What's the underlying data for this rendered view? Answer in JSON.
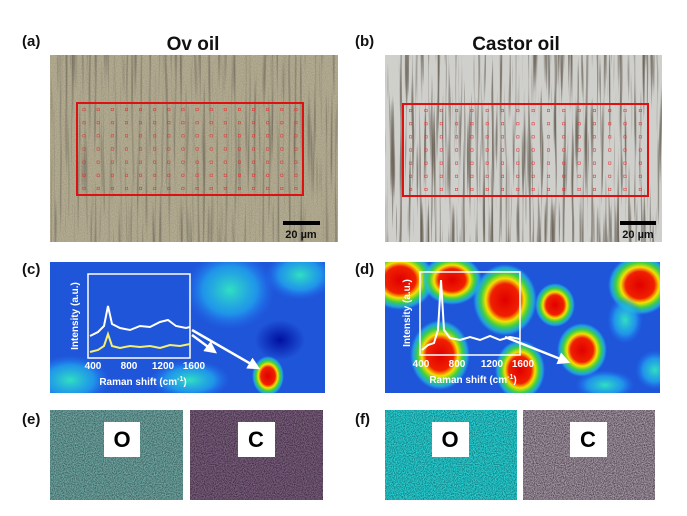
{
  "panels": [
    {
      "label": "(a)",
      "title": "Ov oil",
      "scale_bar": "20 µm"
    },
    {
      "label": "(b)",
      "title": "Castor oil",
      "scale_bar": "20 µm"
    }
  ],
  "raman": [
    {
      "label": "(c)",
      "y_label": "Intensity (a.u.)",
      "x_label": "Raman shift (cm",
      "x_label_sup": "-1",
      "x_label_end": ")",
      "xticks": [
        400,
        800,
        1200,
        1600
      ]
    },
    {
      "label": "(d)",
      "y_label": "Intensity (a.u.)",
      "x_label": "Raman shift (cm",
      "x_label_sup": "-1",
      "x_label_end": ")",
      "xticks": [
        400,
        800,
        1200,
        1600
      ]
    }
  ],
  "eds": [
    {
      "label": "(e)",
      "maps": [
        "O",
        "C"
      ]
    },
    {
      "label": "(f)",
      "maps": [
        "O",
        "C"
      ]
    }
  ]
}
